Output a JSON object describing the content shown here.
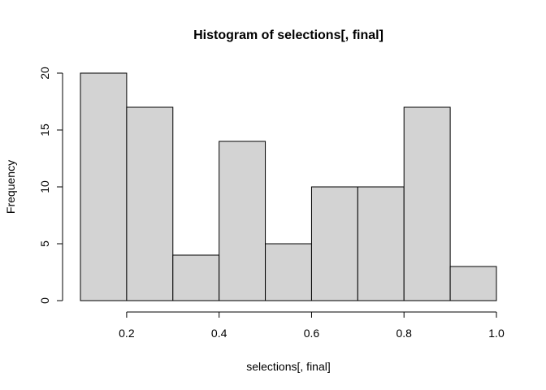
{
  "chart_data": {
    "type": "bar",
    "title": "Histogram of selections[, final]",
    "xlabel": "selections[, final]",
    "ylabel": "Frequency",
    "bins": [
      {
        "from": 0.1,
        "to": 0.2,
        "count": 20
      },
      {
        "from": 0.2,
        "to": 0.3,
        "count": 17
      },
      {
        "from": 0.3,
        "to": 0.4,
        "count": 4
      },
      {
        "from": 0.4,
        "to": 0.5,
        "count": 14
      },
      {
        "from": 0.5,
        "to": 0.6,
        "count": 5
      },
      {
        "from": 0.6,
        "to": 0.7,
        "count": 10
      },
      {
        "from": 0.7,
        "to": 0.8,
        "count": 10
      },
      {
        "from": 0.8,
        "to": 0.9,
        "count": 17
      },
      {
        "from": 0.9,
        "to": 1.0,
        "count": 3
      }
    ],
    "x_ticks": [
      0.2,
      0.4,
      0.6,
      0.8,
      1.0
    ],
    "x_tick_labels": [
      "0.2",
      "0.4",
      "0.6",
      "0.8",
      "1.0"
    ],
    "y_ticks": [
      0,
      5,
      10,
      15,
      20
    ],
    "y_tick_labels": [
      "0",
      "5",
      "10",
      "15",
      "20"
    ],
    "xlim": [
      0.1,
      1.0
    ],
    "ylim": [
      0,
      20
    ],
    "grid": false,
    "bar_color": "#d3d3d3",
    "border_color": "#000000"
  }
}
